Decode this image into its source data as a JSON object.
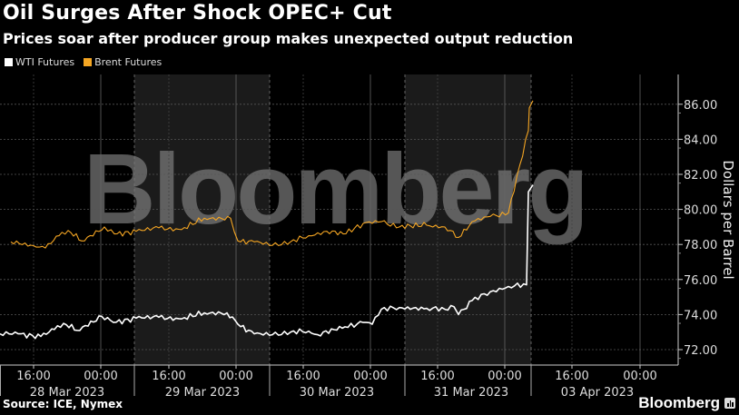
{
  "title": "Oil Surges After Shock OPEC+ Cut",
  "subtitle": "Prices soar after producer group makes unexpected output reduction",
  "legend": [
    {
      "label": "WTI Futures",
      "color": "#ffffff"
    },
    {
      "label": "Brent Futures",
      "color": "#f5a623"
    }
  ],
  "source": "Source: ICE, Nymex",
  "brand": "Bloomberg",
  "watermark": "Bloomberg",
  "chart_data": {
    "type": "line",
    "title": "Oil Surges After Shock OPEC+ Cut",
    "subtitle": "Prices soar after producer group makes unexpected output reduction",
    "xlabel": "",
    "ylabel": "Dollars per Barrel",
    "ylim": [
      71,
      87.5
    ],
    "yticks": [
      72,
      74,
      76,
      78,
      80,
      82,
      84,
      86
    ],
    "ytick_labels": [
      "72.00",
      "74.00",
      "76.00",
      "78.00",
      "80.00",
      "82.00",
      "84.00",
      "86.00"
    ],
    "y_axis_position": "right",
    "grid": true,
    "legend_position": "top-left",
    "x_ticks": [
      {
        "time": "16:00",
        "day": "28 Mar 2023"
      },
      {
        "time": "00:00",
        "day": "28 Mar 2023"
      },
      {
        "time": "16:00",
        "day": "29 Mar 2023"
      },
      {
        "time": "00:00",
        "day": "29 Mar 2023"
      },
      {
        "time": "16:00",
        "day": "30 Mar 2023"
      },
      {
        "time": "00:00",
        "day": "30 Mar 2023"
      },
      {
        "time": "16:00",
        "day": "31 Mar 2023"
      },
      {
        "time": "00:00",
        "day": "31 Mar 2023"
      },
      {
        "time": "16:00",
        "day": "03 Apr 2023"
      },
      {
        "time": "00:00",
        "day": "03 Apr 2023"
      }
    ],
    "day_labels": [
      "28 Mar 2023",
      "29 Mar 2023",
      "30 Mar 2023",
      "31 Mar 2023",
      "03 Apr 2023"
    ],
    "x": [
      "28 Mar 00:00",
      "28 Mar 04:00",
      "28 Mar 08:00",
      "28 Mar 12:00",
      "28 Mar 16:00",
      "28 Mar 20:00",
      "29 Mar 00:00",
      "29 Mar 04:00",
      "29 Mar 08:00",
      "29 Mar 12:00",
      "29 Mar 16:00",
      "29 Mar 20:00",
      "30 Mar 00:00",
      "30 Mar 04:00",
      "30 Mar 08:00",
      "30 Mar 12:00",
      "30 Mar 16:00",
      "30 Mar 20:00",
      "31 Mar 00:00",
      "31 Mar 04:00",
      "31 Mar 08:00",
      "31 Mar 12:00",
      "31 Mar 16:00",
      "31 Mar 20:00",
      "02 Apr 22:00",
      "03 Apr 00:00"
    ],
    "series": [
      {
        "name": "WTI Futures",
        "color": "#ffffff",
        "values": [
          72.9,
          72.9,
          72.75,
          73.15,
          73.5,
          73.1,
          73.9,
          73.55,
          73.8,
          73.85,
          73.75,
          74.1,
          74.1,
          73.45,
          72.9,
          72.85,
          73.0,
          73.05,
          72.85,
          73.3,
          73.55,
          73.45,
          74.3,
          74.4,
          74.35,
          74.3,
          74.45,
          74.0,
          74.8,
          75.3,
          75.6,
          75.7,
          81.0,
          81.4
        ],
        "points_x": [
          0,
          20,
          45,
          60,
          70,
          85,
          112,
          125,
          150,
          175,
          200,
          225,
          250,
          262,
          280,
          300,
          320,
          340,
          350,
          380,
          400,
          410,
          420,
          440,
          470,
          490,
          500,
          505,
          520,
          540,
          560,
          580,
          582,
          587
        ]
      },
      {
        "name": "Brent Futures",
        "color": "#f5a623",
        "values": [
          78.15,
          77.85,
          77.8,
          78.5,
          78.8,
          78.2,
          79.0,
          78.6,
          78.75,
          78.95,
          78.85,
          79.5,
          79.5,
          78.2,
          78.15,
          77.95,
          78.15,
          78.5,
          78.75,
          78.6,
          79.2,
          79.3,
          79.0,
          79.1,
          79.0,
          78.4,
          79.3,
          79.6,
          79.8,
          84.5,
          85.8,
          86.2
        ],
        "points_x": [
          12,
          40,
          50,
          65,
          75,
          90,
          115,
          126,
          150,
          175,
          200,
          225,
          254,
          262,
          280,
          300,
          320,
          340,
          360,
          378,
          400,
          420,
          440,
          470,
          490,
          505,
          520,
          540,
          560,
          582,
          583,
          587
        ]
      }
    ]
  }
}
